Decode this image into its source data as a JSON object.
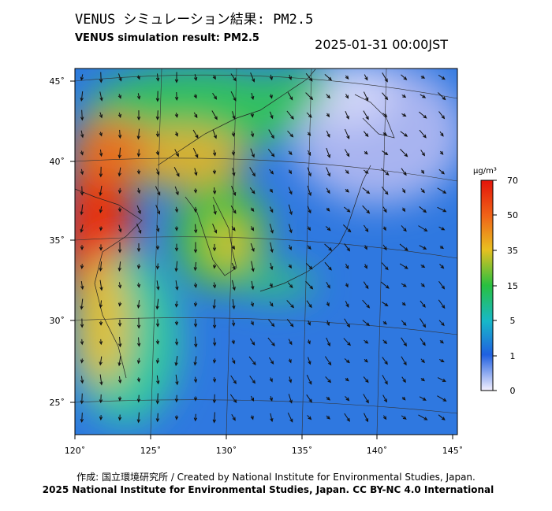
{
  "header": {
    "title_ja": "VENUS シミュレーション結果: PM2.5",
    "title_en": "VENUS simulation result: PM2.5",
    "timestamp": "2025-01-31 00:00JST"
  },
  "map": {
    "lat_labels": [
      "45˚",
      "40˚",
      "35˚",
      "30˚",
      "25˚"
    ],
    "lon_labels": [
      "120˚",
      "125˚",
      "130˚",
      "135˚",
      "140˚",
      "145˚"
    ]
  },
  "colorbar": {
    "unit": "μg/m³",
    "labels": [
      "70",
      "50",
      "35",
      "15",
      "5",
      "1",
      "0"
    ]
  },
  "footer": {
    "credit": "作成: 国立環境研究所 / Created by National Institute for Environmental Studies, Japan.",
    "license": "2025 National Institute for Environmental Studies, Japan. CC BY-NC 4.0 International"
  }
}
